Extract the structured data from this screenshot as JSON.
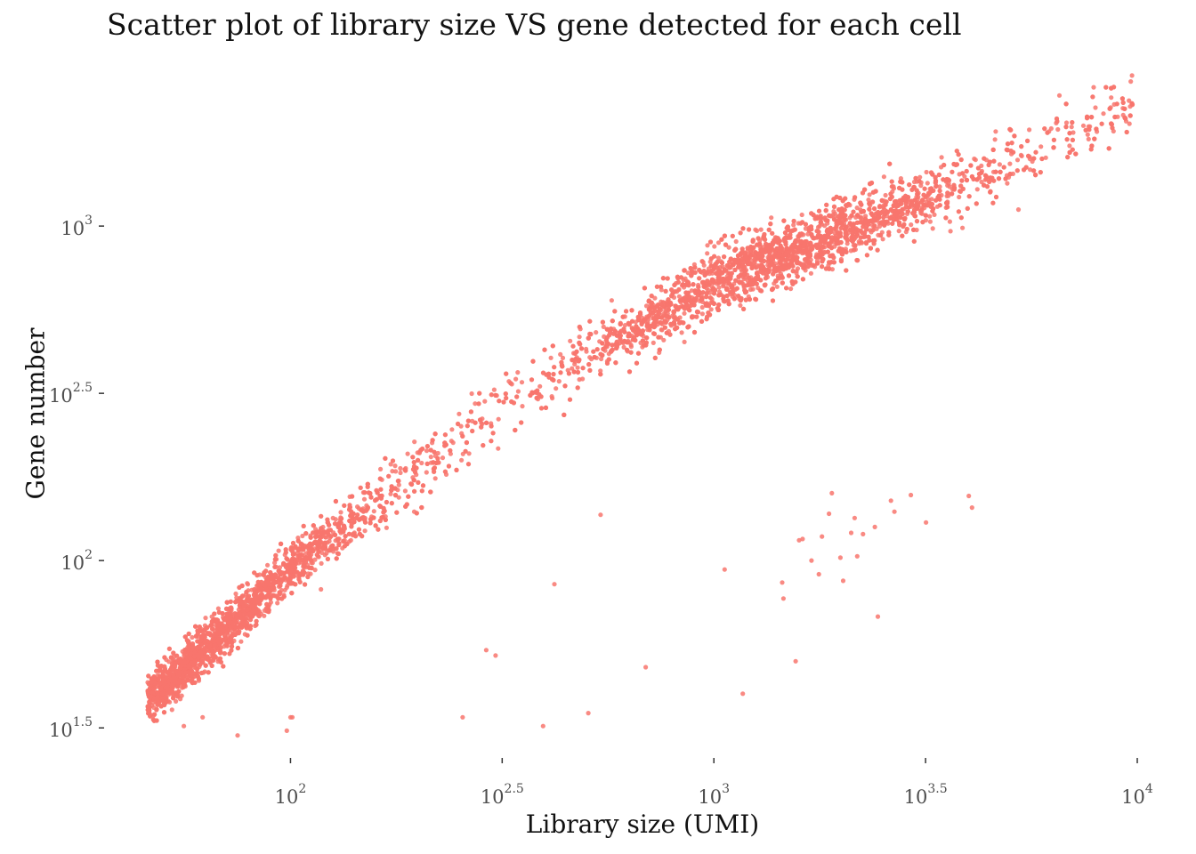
{
  "chart_data": {
    "type": "scatter",
    "title": "Scatter plot of library size VS gene detected for each cell",
    "xlabel": "Library size (UMI)",
    "ylabel": "Gene number",
    "x_scale": "log10",
    "y_scale": "log10",
    "xlim": [
      46,
      10000
    ],
    "ylim": [
      28,
      2650
    ],
    "grid": false,
    "point_color": "#F8766D",
    "x_ticks": [
      {
        "base": "10",
        "exp": "2",
        "value": 100
      },
      {
        "base": "10",
        "exp": "2.5",
        "value": 316.2
      },
      {
        "base": "10",
        "exp": "3",
        "value": 1000
      },
      {
        "base": "10",
        "exp": "3.5",
        "value": 3162.3
      },
      {
        "base": "10",
        "exp": "4",
        "value": 10000
      }
    ],
    "y_ticks": [
      {
        "base": "10",
        "exp": "1.5",
        "value": 31.6
      },
      {
        "base": "10",
        "exp": "2",
        "value": 100
      },
      {
        "base": "10",
        "exp": "2.5",
        "value": 316.2
      },
      {
        "base": "10",
        "exp": "3",
        "value": 1000
      }
    ],
    "main_trend": {
      "description": "dense band of cells",
      "x_range": [
        46,
        9800
      ],
      "y_at_x": [
        [
          46,
          38
        ],
        [
          100,
          95
        ],
        [
          316,
          290
        ],
        [
          1000,
          680
        ],
        [
          3162,
          1200
        ],
        [
          9800,
          2300
        ]
      ]
    },
    "outliers": [
      [
        56,
        32
      ],
      [
        62,
        34
      ],
      [
        75,
        30
      ],
      [
        98,
        31
      ],
      [
        100,
        34
      ],
      [
        101,
        34
      ],
      [
        118,
        82
      ],
      [
        255,
        34
      ],
      [
        290,
        54
      ],
      [
        305,
        52
      ],
      [
        395,
        32
      ],
      [
        420,
        85
      ],
      [
        505,
        35
      ],
      [
        540,
        137
      ],
      [
        690,
        48
      ],
      [
        1060,
        94
      ],
      [
        1170,
        40
      ],
      [
        1450,
        86
      ],
      [
        1460,
        77
      ],
      [
        1560,
        50
      ],
      [
        1590,
        115
      ],
      [
        1620,
        116
      ],
      [
        1700,
        100
      ],
      [
        1770,
        91
      ],
      [
        1800,
        118
      ],
      [
        1870,
        138
      ],
      [
        1900,
        159
      ],
      [
        1990,
        102
      ],
      [
        2020,
        87
      ],
      [
        2110,
        121
      ],
      [
        2150,
        134
      ],
      [
        2180,
        103
      ],
      [
        2250,
        120
      ],
      [
        2400,
        126
      ],
      [
        2440,
        68
      ],
      [
        2620,
        151
      ],
      [
        2670,
        140
      ],
      [
        2920,
        157
      ],
      [
        3170,
        130
      ],
      [
        4000,
        156
      ],
      [
        4070,
        144
      ],
      [
        5240,
        1120
      ]
    ]
  }
}
